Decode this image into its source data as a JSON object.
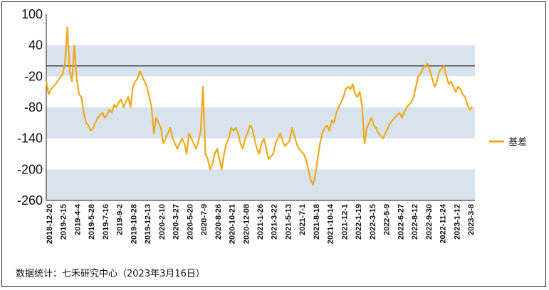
{
  "chart_data": {
    "type": "line",
    "title": "",
    "xlabel": "",
    "ylabel": "",
    "ylim": [
      -260,
      100
    ],
    "y_ticks": [
      100,
      40,
      -20,
      -80,
      -140,
      -200,
      -260
    ],
    "reference_line": 0,
    "grid": "alternating horizontal bands",
    "legend_position": "right",
    "colors": {
      "series": "#F2A817",
      "band": "#D9E3EE",
      "reference": "#222222"
    },
    "x_tick_labels": [
      "2018-12-20",
      "2019-2-15",
      "2019-4-4",
      "2019-5-28",
      "2019-7-16",
      "2019-9-2",
      "2019-10-28",
      "2019-12-13",
      "2020-2-10",
      "2020-3-27",
      "2020-5-20",
      "2020-7-9",
      "2020-8-26",
      "2020-10-21",
      "2020-12-08",
      "2021-1-26",
      "2021-3-22",
      "2021-5-13",
      "2021-7-1",
      "2021-8-18",
      "2021-10-14",
      "2021-12-1",
      "2022-1-19",
      "2022-3-15",
      "2022-5-9",
      "2022-6-27",
      "2022-8-12",
      "2022-9-30",
      "2022-11-24",
      "2023-1-12",
      "2023-3-8"
    ],
    "series": [
      {
        "name": "基差",
        "values": [
          -30,
          -55,
          -45,
          -40,
          -35,
          -28,
          -22,
          -15,
          5,
          75,
          -10,
          -30,
          40,
          -25,
          -55,
          -60,
          -90,
          -110,
          -115,
          -125,
          -120,
          -110,
          -100,
          -95,
          -90,
          -100,
          -95,
          -85,
          -90,
          -75,
          -80,
          -70,
          -65,
          -80,
          -70,
          -60,
          -80,
          -40,
          -30,
          -25,
          -10,
          -20,
          -30,
          -40,
          -60,
          -80,
          -130,
          -100,
          -110,
          -120,
          -150,
          -140,
          -130,
          -120,
          -140,
          -150,
          -160,
          -150,
          -140,
          -150,
          -170,
          -130,
          -140,
          -150,
          -160,
          -145,
          -125,
          -40,
          -170,
          -180,
          -200,
          -190,
          -170,
          -160,
          -180,
          -200,
          -170,
          -150,
          -140,
          -120,
          -125,
          -120,
          -130,
          -150,
          -160,
          -140,
          -130,
          -115,
          -120,
          -140,
          -160,
          -170,
          -150,
          -140,
          -160,
          -180,
          -175,
          -170,
          -150,
          -140,
          -130,
          -145,
          -155,
          -150,
          -145,
          -120,
          -135,
          -150,
          -160,
          -165,
          -170,
          -180,
          -200,
          -220,
          -230,
          -210,
          -180,
          -150,
          -130,
          -120,
          -115,
          -125,
          -105,
          -110,
          -90,
          -80,
          -70,
          -60,
          -45,
          -40,
          -45,
          -35,
          -55,
          -60,
          -50,
          -80,
          -150,
          -120,
          -110,
          -100,
          -115,
          -120,
          -130,
          -135,
          -140,
          -130,
          -120,
          -110,
          -105,
          -100,
          -95,
          -90,
          -100,
          -90,
          -80,
          -75,
          -70,
          -60,
          -40,
          -20,
          -15,
          -5,
          0,
          5,
          -10,
          -25,
          -40,
          -30,
          -10,
          -5,
          0,
          -20,
          -35,
          -30,
          -40,
          -50,
          -40,
          -45,
          -55,
          -60,
          -75,
          -85,
          -78
        ]
      }
    ]
  },
  "legend": {
    "label": "基差"
  },
  "source_note": "数据统计：七禾研究中心（2023年3月16日）"
}
